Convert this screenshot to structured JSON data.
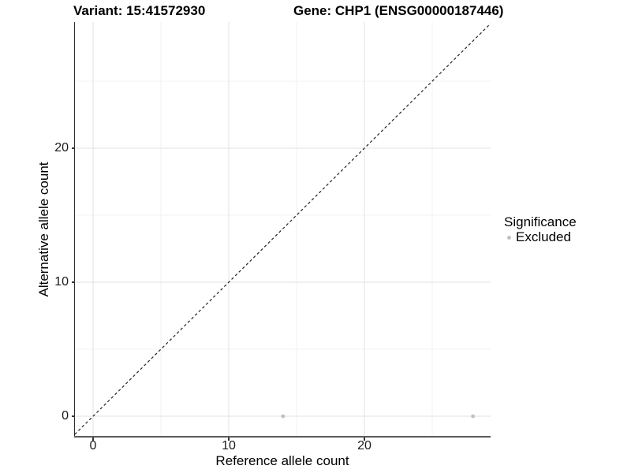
{
  "chart_data": {
    "type": "scatter",
    "title_left": "Variant: 15:41572930",
    "title_right": "Gene: CHP1 (ENSG00000187446)",
    "xlabel": "Reference allele count",
    "ylabel": "Alternative allele count",
    "xlim": [
      -1.35,
      29.3
    ],
    "ylim": [
      -1.47,
      29.4
    ],
    "x_major_ticks": [
      0,
      10,
      20
    ],
    "y_major_ticks": [
      0,
      10,
      20
    ],
    "x_minor_ticks": [
      5,
      15,
      25
    ],
    "y_minor_ticks": [
      5,
      15,
      25
    ],
    "grid": "major and minor gridlines, white panel background",
    "points": [
      {
        "x": 14,
        "y": 0,
        "series": "Excluded"
      },
      {
        "x": 28,
        "y": 0,
        "series": "Excluded"
      }
    ],
    "identity_line": {
      "slope": 1,
      "intercept": 0,
      "style": "dashed",
      "x_range": [
        -1.35,
        29.3
      ]
    },
    "legend": {
      "title": "Significance",
      "position": "right",
      "entries": [
        {
          "label": "Excluded",
          "color": "#c1c1c1"
        }
      ]
    },
    "colors": {
      "point": "#c1c1c1",
      "grid_major": "#e7e7e7",
      "grid_minor": "#f2f2f2",
      "identity_line": "#222222",
      "axis_text": "#1a1a1a",
      "background": "#ffffff"
    }
  }
}
